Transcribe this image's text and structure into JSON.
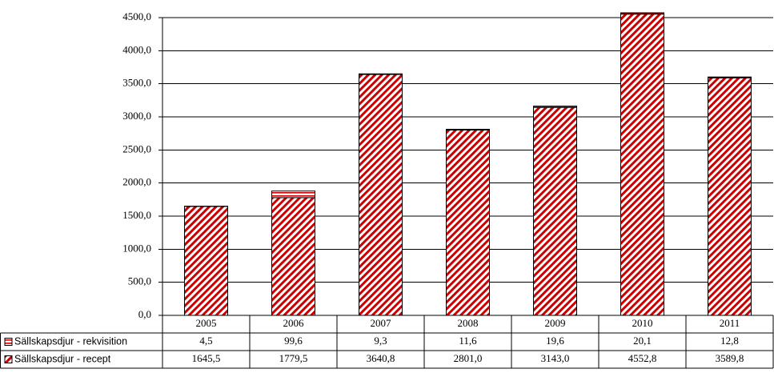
{
  "chart_data": {
    "type": "stacked-bar",
    "categories": [
      "2005",
      "2006",
      "2007",
      "2008",
      "2009",
      "2010",
      "2011"
    ],
    "series": [
      {
        "name": "Sällskapsdjur - rekvisition",
        "color": "#cc0000",
        "pattern": "horizontal",
        "values": [
          4.5,
          99.6,
          9.3,
          11.6,
          19.6,
          20.1,
          12.8
        ],
        "value_labels": [
          "4,5",
          "99,6",
          "9,3",
          "11,6",
          "19,6",
          "20,1",
          "12,8"
        ]
      },
      {
        "name": "Sällskapsdjur - recept",
        "color": "#cc0000",
        "pattern": "diagonal",
        "values": [
          1645.5,
          1779.5,
          3640.8,
          2801.0,
          3143.0,
          4552.8,
          3589.8
        ],
        "value_labels": [
          "1645,5",
          "1779,5",
          "3640,8",
          "2801,0",
          "3143,0",
          "4552,8",
          "3589,8"
        ]
      }
    ],
    "ylim": [
      0,
      4500
    ],
    "yticks": [
      {
        "value": 0,
        "label": "0,0"
      },
      {
        "value": 500,
        "label": "500,0"
      },
      {
        "value": 1000,
        "label": "1000,0"
      },
      {
        "value": 1500,
        "label": "1500,0"
      },
      {
        "value": 2000,
        "label": "2000,0"
      },
      {
        "value": 2500,
        "label": "2500,0"
      },
      {
        "value": 3000,
        "label": "3000,0"
      },
      {
        "value": 3500,
        "label": "3500,0"
      },
      {
        "value": 4000,
        "label": "4000,0"
      },
      {
        "value": 4500,
        "label": "4500,0"
      }
    ],
    "grid": true
  }
}
